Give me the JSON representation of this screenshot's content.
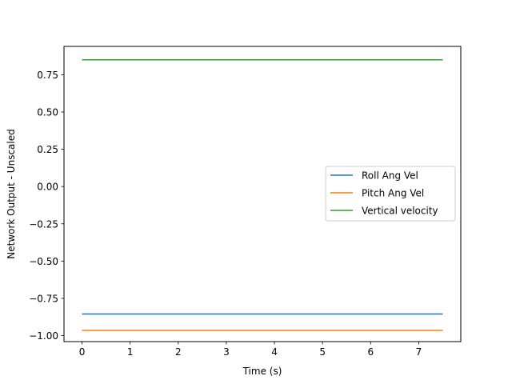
{
  "chart_data": {
    "type": "line",
    "title": "",
    "xlabel": "Time (s)",
    "ylabel": "Network Output - Unscaled",
    "xlim": [
      -0.375,
      7.875
    ],
    "ylim": [
      -1.04,
      0.94
    ],
    "xticks": [
      0,
      1,
      2,
      3,
      4,
      5,
      6,
      7
    ],
    "xtick_labels": [
      "0",
      "1",
      "2",
      "3",
      "4",
      "5",
      "6",
      "7"
    ],
    "yticks": [
      -1.0,
      -0.75,
      -0.5,
      -0.25,
      0.0,
      0.25,
      0.5,
      0.75
    ],
    "ytick_labels": [
      "−1.00",
      "−0.75",
      "−0.50",
      "−0.25",
      "0.00",
      "0.25",
      "0.50",
      "0.75"
    ],
    "grid": false,
    "legend": {
      "placement": "center-right"
    },
    "series": [
      {
        "name": "Roll Ang Vel",
        "color": "#1f77b4",
        "x": [
          0,
          7.5
        ],
        "y": [
          -0.855,
          -0.855
        ]
      },
      {
        "name": "Pitch Ang Vel",
        "color": "#ff7f0e",
        "x": [
          0,
          7.5
        ],
        "y": [
          -0.965,
          -0.965
        ]
      },
      {
        "name": "Vertical velocity",
        "color": "#2ca02c",
        "x": [
          0,
          7.5
        ],
        "y": [
          0.85,
          0.85
        ]
      }
    ]
  }
}
